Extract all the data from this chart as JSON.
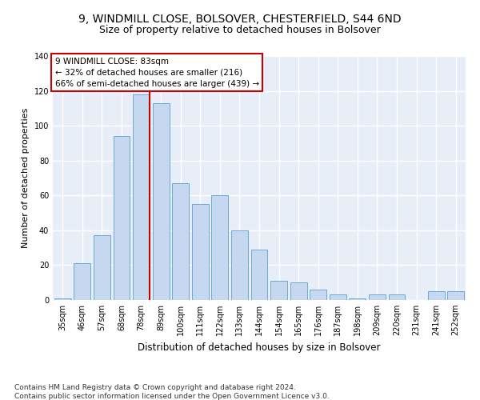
{
  "title1": "9, WINDMILL CLOSE, BOLSOVER, CHESTERFIELD, S44 6ND",
  "title2": "Size of property relative to detached houses in Bolsover",
  "xlabel": "Distribution of detached houses by size in Bolsover",
  "ylabel": "Number of detached properties",
  "bar_labels": [
    "35sqm",
    "46sqm",
    "57sqm",
    "68sqm",
    "78sqm",
    "89sqm",
    "100sqm",
    "111sqm",
    "122sqm",
    "133sqm",
    "144sqm",
    "154sqm",
    "165sqm",
    "176sqm",
    "187sqm",
    "198sqm",
    "209sqm",
    "220sqm",
    "231sqm",
    "241sqm",
    "252sqm"
  ],
  "bar_values": [
    1,
    21,
    37,
    94,
    118,
    113,
    67,
    55,
    60,
    40,
    29,
    11,
    10,
    6,
    3,
    1,
    3,
    3,
    0,
    5,
    5
  ],
  "bar_color": "#c5d8f0",
  "bar_edge_color": "#6aaad4",
  "marker_bin_index": 4,
  "marker_color": "#cc0000",
  "annotation_text": "9 WINDMILL CLOSE: 83sqm\n← 32% of detached houses are smaller (216)\n66% of semi-detached houses are larger (439) →",
  "annotation_box_color": "#ffffff",
  "annotation_box_edge": "#cc0000",
  "ylim": [
    0,
    140
  ],
  "yticks": [
    0,
    20,
    40,
    60,
    80,
    100,
    120,
    140
  ],
  "footnote": "Contains HM Land Registry data © Crown copyright and database right 2024.\nContains public sector information licensed under the Open Government Licence v3.0.",
  "bg_color": "#e8eef8",
  "grid_color": "#ffffff",
  "title1_fontsize": 10,
  "title2_fontsize": 9,
  "xlabel_fontsize": 8.5,
  "ylabel_fontsize": 8,
  "tick_fontsize": 7,
  "annotation_fontsize": 7.5,
  "footnote_fontsize": 6.5
}
